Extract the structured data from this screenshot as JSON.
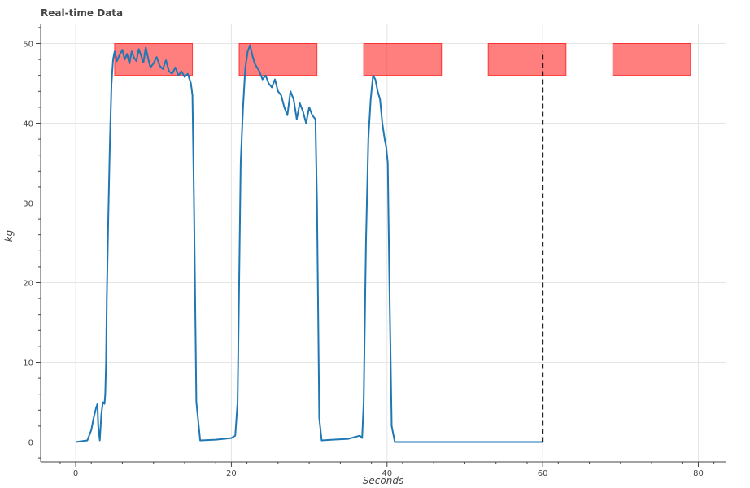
{
  "chart_data": {
    "type": "line",
    "title": "Real-time Data",
    "xlabel": "Seconds",
    "ylabel": "kg",
    "xlim": [
      -4.5,
      83.5
    ],
    "ylim": [
      -2.5,
      52.5
    ],
    "xticks": [
      0,
      20,
      40,
      60,
      80
    ],
    "yticks": [
      0,
      10,
      20,
      30,
      40,
      50
    ],
    "grid": true,
    "colors": {
      "line": "#1f77b4",
      "band": "#ff0000",
      "marker": "#000000",
      "grid": "#e5e5e5",
      "axis": "#444444"
    },
    "target_bands": [
      {
        "x0": 5,
        "x1": 15,
        "y0": 46,
        "y1": 50
      },
      {
        "x0": 21,
        "x1": 31,
        "y0": 46,
        "y1": 50
      },
      {
        "x0": 37,
        "x1": 47,
        "y0": 46,
        "y1": 50
      },
      {
        "x0": 53,
        "x1": 63,
        "y0": 46,
        "y1": 50
      },
      {
        "x0": 69,
        "x1": 79,
        "y0": 46,
        "y1": 50
      }
    ],
    "current_time": {
      "x": 60,
      "y0": 0,
      "y1": 49
    },
    "series": [
      {
        "x": [
          0,
          1.5,
          2.0,
          2.3,
          2.6,
          2.8,
          2.9,
          3.1,
          3.3,
          3.5,
          3.7,
          3.8,
          3.9,
          4.0,
          4.2,
          4.4,
          4.6,
          4.8,
          5.0,
          5.3,
          5.6,
          6.0,
          6.3,
          6.6,
          6.9,
          7.2,
          7.5,
          7.8,
          8.1,
          8.4,
          8.7,
          9.0,
          9.3,
          9.6,
          10.0,
          10.4,
          10.8,
          11.2,
          11.6,
          12.0,
          12.4,
          12.8,
          13.2,
          13.6,
          14.0,
          14.4,
          14.8,
          15.0,
          15.2,
          15.5,
          16,
          18,
          20,
          20.5,
          20.8,
          21.0,
          21.2,
          21.5,
          21.8,
          22.1,
          22.4,
          22.7,
          23.0,
          23.3,
          23.6,
          24.0,
          24.4,
          24.8,
          25.2,
          25.6,
          26.0,
          26.4,
          26.8,
          27.2,
          27.6,
          28.0,
          28.4,
          28.8,
          29.2,
          29.6,
          30.0,
          30.4,
          30.8,
          31.0,
          31.3,
          31.6,
          33,
          35,
          36.5,
          36.8,
          37.0,
          37.3,
          37.6,
          37.9,
          38.2,
          38.5,
          38.8,
          39.1,
          39.4,
          39.7,
          39.9,
          40.1,
          40.3,
          40.6,
          41,
          45,
          50,
          55,
          60
        ],
        "y": [
          0,
          0.2,
          1.5,
          3.0,
          4.2,
          4.8,
          2.0,
          0.2,
          3.5,
          5.0,
          4.8,
          6.0,
          10.0,
          18.0,
          28.5,
          38.0,
          45.0,
          48.0,
          49.0,
          47.8,
          48.5,
          49.2,
          48.0,
          48.7,
          47.5,
          49.0,
          48.2,
          47.8,
          49.3,
          48.5,
          47.6,
          49.5,
          48.2,
          47.0,
          47.5,
          48.3,
          47.2,
          46.8,
          47.9,
          46.5,
          46.2,
          47.0,
          46.0,
          46.5,
          45.8,
          46.2,
          45.0,
          43.5,
          30.0,
          5.0,
          0.2,
          0.3,
          0.5,
          0.8,
          5.0,
          20.0,
          35.0,
          42.0,
          47.0,
          49.0,
          49.8,
          48.5,
          47.5,
          47.0,
          46.5,
          45.5,
          46.0,
          45.0,
          44.5,
          45.5,
          44.0,
          43.5,
          42.0,
          41.0,
          44.0,
          43.0,
          40.5,
          42.5,
          41.5,
          40.0,
          42.0,
          41.0,
          40.5,
          30.0,
          3.0,
          0.2,
          0.3,
          0.4,
          0.8,
          0.5,
          5.0,
          25.0,
          38.0,
          43.0,
          46.0,
          45.5,
          44.0,
          43.0,
          40.0,
          38.0,
          37.0,
          35.0,
          20.0,
          2.0,
          0.0,
          0.0,
          0.0,
          0.0,
          0.0
        ]
      }
    ]
  }
}
